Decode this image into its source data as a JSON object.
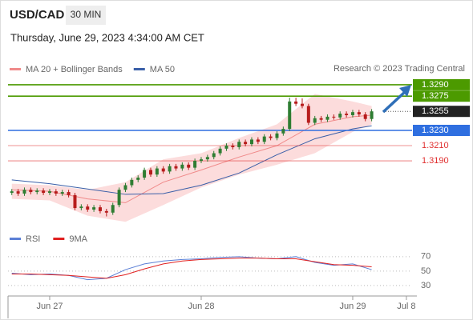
{
  "chart_data": {
    "type": "candlestick",
    "title": "USD/CAD",
    "interval": "30 MIN",
    "subtitle": "Thursday, June 29, 2023 4:34:00 AM CET",
    "source": "Research © 2023 Trading Central",
    "xlim": [
      -6.6,
      57.4
    ],
    "xticks": [
      {
        "value": 0,
        "label": "Jun 27"
      },
      {
        "value": 24,
        "label": "Jun 28"
      },
      {
        "value": 48,
        "label": "Jun 29"
      },
      {
        "value": 56.5,
        "label": "Jul 8"
      }
    ],
    "ylim": [
      1.3106,
      1.3292
    ],
    "up_color": "#2e7d32",
    "down_color": "#b71c1c",
    "x": [
      -6,
      -5,
      -4,
      -3,
      -2,
      -1,
      0,
      1,
      2,
      3,
      4,
      5,
      6,
      7,
      8,
      9,
      10,
      11,
      12,
      13,
      14,
      15,
      16,
      17,
      18,
      19,
      20,
      21,
      22,
      23,
      24,
      25,
      26,
      27,
      28,
      29,
      30,
      31,
      32,
      33,
      34,
      35,
      36,
      37,
      38,
      39,
      40,
      41,
      42,
      43,
      44,
      45,
      46,
      47,
      48,
      49,
      50,
      51
    ],
    "open": [
      1.3148,
      1.315,
      1.3147,
      1.3152,
      1.3149,
      1.3151,
      1.3148,
      1.315,
      1.3147,
      1.3149,
      1.3145,
      1.3128,
      1.313,
      1.3126,
      1.3129,
      1.3124,
      1.3122,
      1.3132,
      1.3152,
      1.3158,
      1.3165,
      1.3168,
      1.3178,
      1.3172,
      1.318,
      1.3176,
      1.3183,
      1.318,
      1.3185,
      1.3181,
      1.319,
      1.3192,
      1.3195,
      1.32,
      1.3206,
      1.321,
      1.3208,
      1.3215,
      1.3212,
      1.3218,
      1.3215,
      1.3222,
      1.322,
      1.3226,
      1.3232,
      1.3268,
      1.3265,
      1.3262,
      1.324,
      1.3246,
      1.3244,
      1.3248,
      1.3247,
      1.3252,
      1.325,
      1.3254,
      1.3251,
      1.3245
    ],
    "high": [
      1.3153,
      1.3153,
      1.3155,
      1.3155,
      1.3154,
      1.3154,
      1.3153,
      1.3153,
      1.3152,
      1.3152,
      1.3148,
      1.3133,
      1.3133,
      1.3132,
      1.3132,
      1.3127,
      1.3135,
      1.3155,
      1.3161,
      1.3168,
      1.3171,
      1.3181,
      1.3181,
      1.3183,
      1.3183,
      1.3186,
      1.3186,
      1.3188,
      1.3188,
      1.3193,
      1.3195,
      1.3198,
      1.3203,
      1.3209,
      1.3213,
      1.3213,
      1.3218,
      1.3218,
      1.3221,
      1.3221,
      1.3225,
      1.3225,
      1.3229,
      1.3235,
      1.3273,
      1.3273,
      1.3272,
      1.3265,
      1.3249,
      1.3249,
      1.3251,
      1.3251,
      1.3255,
      1.3255,
      1.3257,
      1.3257,
      1.3254,
      1.3258
    ],
    "low": [
      1.3145,
      1.3144,
      1.3144,
      1.3146,
      1.3146,
      1.3145,
      1.3145,
      1.3144,
      1.3144,
      1.3142,
      1.3125,
      1.3125,
      1.3123,
      1.3123,
      1.3121,
      1.3117,
      1.3119,
      1.3129,
      1.3149,
      1.3155,
      1.3162,
      1.3165,
      1.3169,
      1.3169,
      1.3173,
      1.3173,
      1.3177,
      1.3177,
      1.3178,
      1.3178,
      1.3187,
      1.3189,
      1.3192,
      1.3197,
      1.3203,
      1.3205,
      1.3205,
      1.3209,
      1.3209,
      1.3212,
      1.3212,
      1.3217,
      1.3217,
      1.3223,
      1.3229,
      1.3262,
      1.3259,
      1.3237,
      1.3237,
      1.3241,
      1.3241,
      1.3244,
      1.3244,
      1.3247,
      1.3247,
      1.3248,
      1.3242,
      1.3242
    ],
    "close": [
      1.315,
      1.3147,
      1.3152,
      1.3149,
      1.3151,
      1.3148,
      1.315,
      1.3147,
      1.3149,
      1.3145,
      1.3128,
      1.313,
      1.3126,
      1.3129,
      1.3124,
      1.3122,
      1.3132,
      1.3152,
      1.3158,
      1.3165,
      1.3168,
      1.3178,
      1.3172,
      1.318,
      1.3176,
      1.3183,
      1.318,
      1.3185,
      1.3181,
      1.319,
      1.3192,
      1.3195,
      1.32,
      1.3206,
      1.321,
      1.3208,
      1.3215,
      1.3212,
      1.3218,
      1.3215,
      1.3222,
      1.322,
      1.3226,
      1.3232,
      1.3268,
      1.3265,
      1.3262,
      1.324,
      1.3246,
      1.3244,
      1.3248,
      1.3247,
      1.3252,
      1.325,
      1.3254,
      1.3251,
      1.3245,
      1.3255
    ],
    "overlays": [
      {
        "name": "MA 20 + Bollinger Bands",
        "color": "#f08a8a",
        "band_color": "#fcdcdc",
        "x": [
          -6,
          0,
          6,
          12,
          18,
          24,
          30,
          36,
          42,
          48,
          51
        ],
        "values": [
          1.3152,
          1.315,
          1.314,
          1.3135,
          1.3162,
          1.3178,
          1.3195,
          1.321,
          1.3238,
          1.3248,
          1.325
        ],
        "upper": [
          1.316,
          1.3158,
          1.3152,
          1.3162,
          1.3192,
          1.32,
          1.322,
          1.3238,
          1.3278,
          1.3268,
          1.3262
        ],
        "lower": [
          1.314,
          1.3138,
          1.3118,
          1.311,
          1.3132,
          1.3155,
          1.3172,
          1.3185,
          1.32,
          1.3228,
          1.3238
        ]
      },
      {
        "name": "MA 50",
        "color": "#3a5fa8",
        "x": [
          -6,
          0,
          6,
          12,
          18,
          24,
          30,
          36,
          42,
          48,
          51
        ],
        "values": [
          1.3165,
          1.316,
          1.3153,
          1.3146,
          1.3147,
          1.3158,
          1.3174,
          1.3198,
          1.3219,
          1.3232,
          1.3236
        ]
      }
    ],
    "levels": [
      {
        "value": 1.329,
        "label": "1.3290",
        "color": "#4c9a00",
        "style": "box"
      },
      {
        "value": 1.3275,
        "label": "1.3275",
        "color": "#4c9a00",
        "style": "box"
      },
      {
        "value": 1.3255,
        "label": "1.3255",
        "color": "#222222",
        "style": "current"
      },
      {
        "value": 1.323,
        "label": "1.3230",
        "color": "#2f6fe0",
        "style": "box"
      },
      {
        "value": 1.321,
        "label": "1.3210",
        "color": "#e03030",
        "style": "text"
      },
      {
        "value": 1.319,
        "label": "1.3190",
        "color": "#e03030",
        "style": "text"
      }
    ],
    "rsi": {
      "ylim": [
        21,
        82
      ],
      "yticks": [
        70,
        50,
        30
      ],
      "x": [
        -6,
        -3,
        0,
        3,
        6,
        9,
        12,
        15,
        18,
        21,
        24,
        27,
        30,
        33,
        36,
        39,
        42,
        45,
        48,
        51
      ],
      "series": [
        {
          "name": "RSI",
          "color": "#5b7fd6",
          "values": [
            47,
            45,
            46,
            44,
            38,
            40,
            52,
            60,
            64,
            66,
            67,
            69,
            70,
            68,
            67,
            70,
            62,
            58,
            60,
            52
          ]
        },
        {
          "name": "9MA",
          "color": "#e02020",
          "values": [
            46,
            46,
            45,
            44,
            42,
            40,
            45,
            53,
            60,
            64,
            66,
            67,
            68,
            68,
            67,
            67,
            63,
            59,
            58,
            56
          ]
        }
      ]
    }
  }
}
